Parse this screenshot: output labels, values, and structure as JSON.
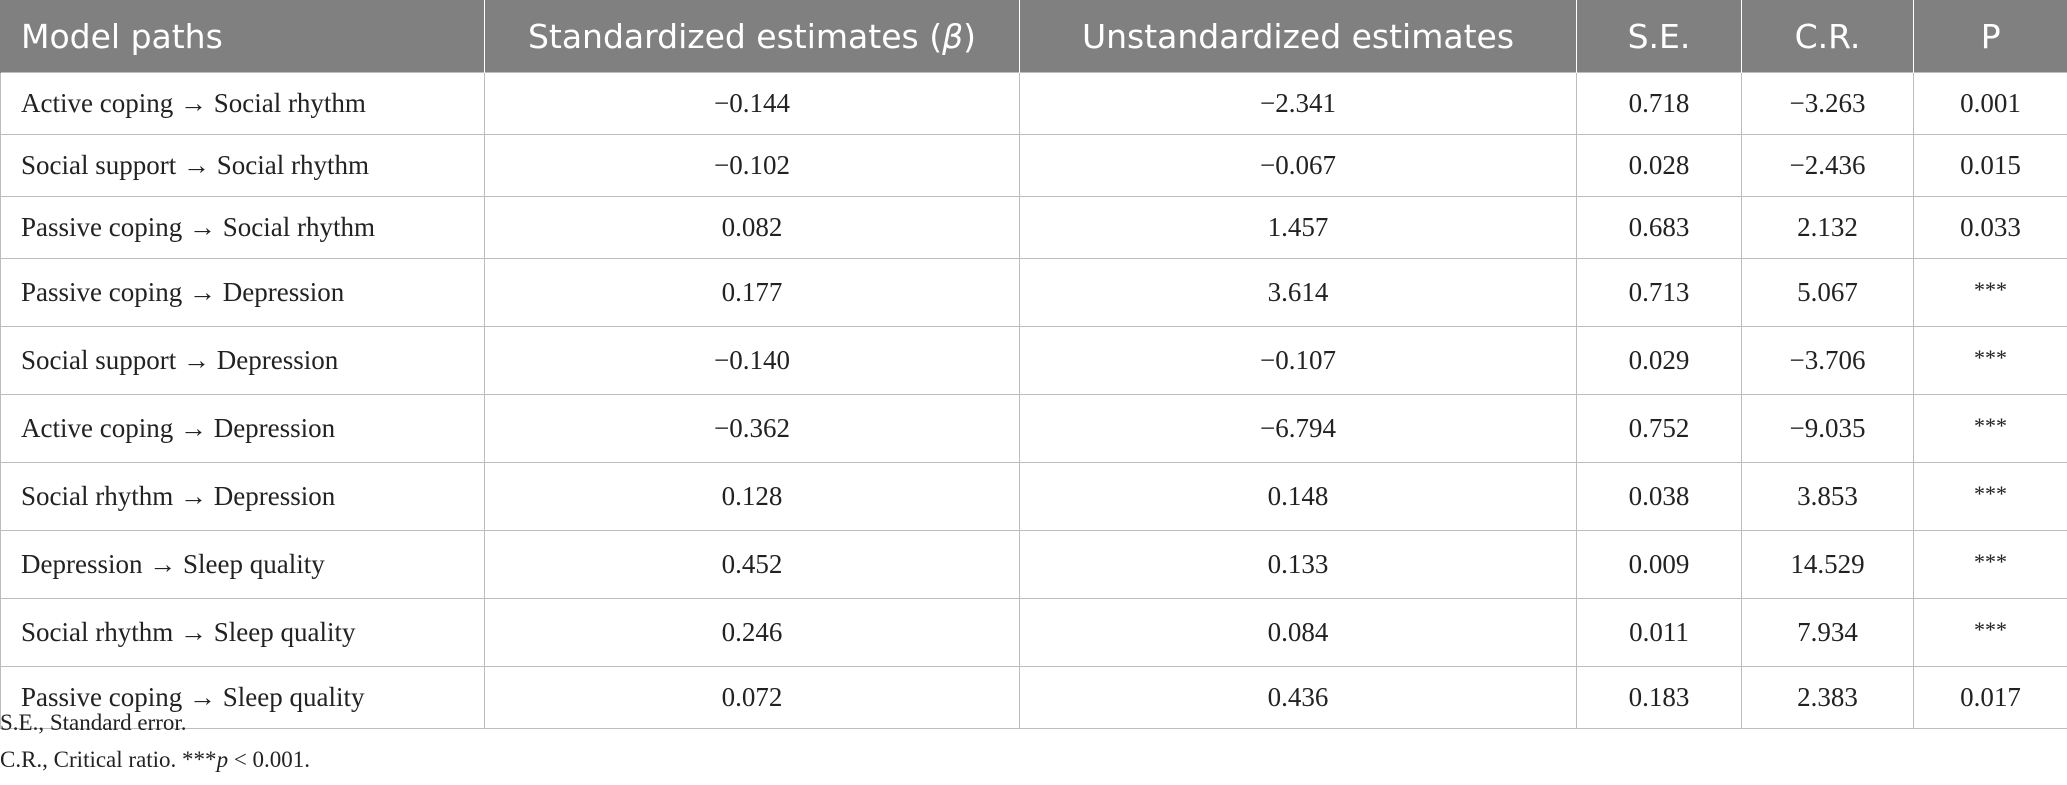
{
  "table": {
    "headers": [
      "Model paths",
      "Standardized estimates (",
      "Unstandardized estimates",
      "S.E.",
      "C.R.",
      "P"
    ],
    "header_beta_symbol": "β",
    "header_beta_close": ")",
    "rows": [
      [
        "Active coping → Social rhythm",
        "−0.144",
        "−2.341",
        "0.718",
        "−3.263",
        "0.001"
      ],
      [
        "Social support → Social rhythm",
        "−0.102",
        "−0.067",
        "0.028",
        "−2.436",
        "0.015"
      ],
      [
        "Passive coping → Social rhythm",
        "0.082",
        "1.457",
        "0.683",
        "2.132",
        "0.033"
      ],
      [
        "Passive coping → Depression",
        "0.177",
        "3.614",
        "0.713",
        "5.067",
        "***"
      ],
      [
        "Social support → Depression",
        "−0.140",
        "−0.107",
        "0.029",
        "−3.706",
        "***"
      ],
      [
        "Active coping → Depression",
        "−0.362",
        "−6.794",
        "0.752",
        "−9.035",
        "***"
      ],
      [
        "Social rhythm → Depression",
        "0.128",
        "0.148",
        "0.038",
        "3.853",
        "***"
      ],
      [
        "Depression → Sleep quality",
        "0.452",
        "0.133",
        "0.009",
        "14.529",
        "***"
      ],
      [
        "Social rhythm → Sleep quality",
        "0.246",
        "0.084",
        "0.011",
        "7.934",
        "***"
      ],
      [
        "Passive coping → Sleep quality",
        "0.072",
        "0.436",
        "0.183",
        "2.383",
        "0.017"
      ]
    ]
  },
  "footnotes": {
    "se": "S.E., Standard error.",
    "cr_prefix": "C.R., Critical ratio. ***",
    "cr_p": "p",
    "cr_suffix": " < 0.001."
  }
}
